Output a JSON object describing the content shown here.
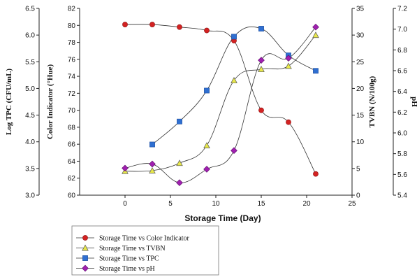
{
  "chart_data": {
    "type": "line",
    "xlabel": "Storage Time (Day)",
    "x_ticks": [
      0,
      5,
      10,
      15,
      20,
      25
    ],
    "xlim": [
      -5,
      25
    ],
    "grid": false,
    "legend_position": "bottom-left",
    "axes": [
      {
        "id": "tpc",
        "label": "Log TPC (CFU/mL)",
        "range": [
          3.0,
          6.5
        ],
        "ticks": [
          "3.0",
          "3.5",
          "4.0",
          "4.5",
          "5.0",
          "5.5",
          "6.0",
          "6.5"
        ],
        "side": "left-outer"
      },
      {
        "id": "color",
        "label": "Color Indicator (°Hue)",
        "range": [
          60,
          82
        ],
        "ticks": [
          "60",
          "62",
          "64",
          "66",
          "68",
          "70",
          "72",
          "74",
          "76",
          "78",
          "80",
          "82"
        ],
        "side": "left-inner"
      },
      {
        "id": "tvbn",
        "label": "TVBN (N/100g)",
        "range": [
          0,
          35
        ],
        "ticks": [
          "0",
          "5",
          "10",
          "15",
          "20",
          "25",
          "30",
          "35"
        ],
        "side": "right-inner"
      },
      {
        "id": "ph",
        "label": "pH",
        "range": [
          5.4,
          7.2
        ],
        "ticks": [
          "5.4",
          "5.6",
          "5.8",
          "6.0",
          "6.2",
          "6.4",
          "6.6",
          "6.8",
          "7.0",
          "7.2"
        ],
        "side": "right-outer"
      }
    ],
    "series": [
      {
        "name": "Storage Time vs Color Indicator",
        "axis": "color",
        "color": "#d32222",
        "marker": "circle",
        "x": [
          0,
          3,
          6,
          9,
          12,
          15,
          18,
          21
        ],
        "y": [
          80.1,
          80.1,
          79.8,
          79.4,
          78.2,
          70.0,
          68.6,
          62.5
        ]
      },
      {
        "name": "Storage Time vs TVBN",
        "axis": "tvbn",
        "color": "#e8e84a",
        "marker": "triangle",
        "x": [
          0,
          3,
          6,
          9,
          12,
          15,
          18,
          21
        ],
        "y": [
          4.5,
          4.6,
          6.0,
          9.3,
          21.5,
          23.6,
          24.2,
          30.0
        ]
      },
      {
        "name": "Storage Time vs TPC",
        "axis": "tpc",
        "color": "#2f6fd1",
        "marker": "square",
        "x": [
          3,
          6,
          9,
          12,
          15,
          18,
          21
        ],
        "y": [
          3.95,
          4.38,
          4.96,
          5.97,
          6.12,
          5.62,
          5.33
        ]
      },
      {
        "name": "Storage Time vs pH",
        "axis": "ph",
        "color": "#a020b0",
        "marker": "diamond",
        "x": [
          0,
          3,
          6,
          9,
          12,
          15,
          18,
          21
        ],
        "y": [
          5.66,
          5.7,
          5.52,
          5.65,
          5.83,
          6.7,
          6.72,
          7.02
        ]
      }
    ]
  }
}
